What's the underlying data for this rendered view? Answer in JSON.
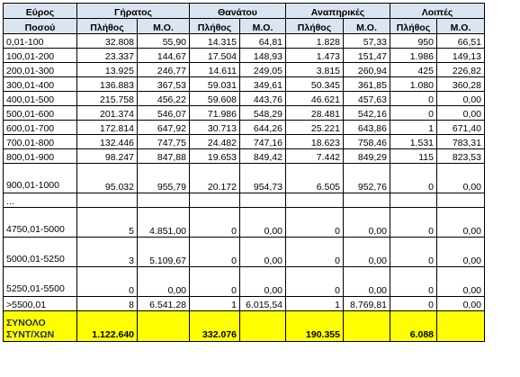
{
  "header": {
    "range_label_1": "Εύρος",
    "range_label_2": "Ποσού",
    "groups": [
      "Γήρατος",
      "Θανάτου",
      "Αναπηρικές",
      "Λοιπές"
    ],
    "count_label": "Πλήθος",
    "avg_label": "Μ.Ο."
  },
  "rows": [
    {
      "range": "0,01-100",
      "cells": [
        "32.808",
        "55,90",
        "14.315",
        "64,81",
        "1.828",
        "57,33",
        "950",
        "66,51"
      ]
    },
    {
      "range": "100,01-200",
      "cells": [
        "23.337",
        "144,67",
        "17.504",
        "148,93",
        "1.473",
        "151,47",
        "1.986",
        "149,13"
      ]
    },
    {
      "range": "200,01-300",
      "cells": [
        "13.925",
        "246,77",
        "14.611",
        "249,05",
        "3.815",
        "260,94",
        "425",
        "226,82"
      ]
    },
    {
      "range": "300,01-400",
      "cells": [
        "136.883",
        "367,53",
        "59.031",
        "349,61",
        "50.345",
        "361,85",
        "1.080",
        "360,28"
      ]
    },
    {
      "range": "400,01-500",
      "cells": [
        "215.758",
        "456,22",
        "59.608",
        "443,76",
        "46.621",
        "457,63",
        "0",
        "0,00"
      ]
    },
    {
      "range": "500,01-600",
      "cells": [
        "201.374",
        "546,07",
        "71.986",
        "548,29",
        "28.481",
        "542,16",
        "0",
        "0,00"
      ]
    },
    {
      "range": "600,01-700",
      "cells": [
        "172.814",
        "647,92",
        "30.713",
        "644,26",
        "25.221",
        "643,86",
        "1",
        "671,40"
      ]
    },
    {
      "range": "700,01-800",
      "cells": [
        "132.446",
        "747,75",
        "24.482",
        "747,16",
        "18.623",
        "758,46",
        "1.531",
        "783,31"
      ]
    },
    {
      "range": "800,01-900",
      "cells": [
        "98.247",
        "847,88",
        "19.653",
        "849,42",
        "7.442",
        "849,29",
        "115",
        "823,53"
      ]
    },
    {
      "range": "900,01-1000",
      "cells": [
        "95.032",
        "955,79",
        "20.172",
        "954,73",
        "6.505",
        "952,76",
        "0",
        "0,00"
      ]
    },
    {
      "range": "...",
      "cells": [
        "",
        "",
        "",
        "",
        "",
        "",
        "",
        ""
      ]
    },
    {
      "range": "4750,01-5000",
      "cells": [
        "5",
        "4.851,00",
        "0",
        "0,00",
        "0",
        "0,00",
        "0",
        "0,00"
      ]
    },
    {
      "range": "5000,01-5250",
      "cells": [
        "3",
        "5.109,67",
        "0",
        "0,00",
        "0",
        "0,00",
        "0",
        "0,00"
      ]
    },
    {
      "range": "5250,01-5500",
      "cells": [
        "0",
        "0,00",
        "0",
        "0,00",
        "0",
        "0,00",
        "0",
        "0,00"
      ]
    },
    {
      "range": ">5500,01",
      "cells": [
        "8",
        "6.541,28",
        "1",
        "6.015,54",
        "1",
        "8.769,81",
        "0",
        "0,00"
      ]
    }
  ],
  "footer": {
    "label_1": "ΣΥΝΟΛΟ",
    "label_2": "ΣΥΝΤ/ΧΩΝ",
    "totals": [
      "1.122.640",
      "",
      "332.076",
      "",
      "190.355",
      "",
      "6.088",
      ""
    ]
  },
  "colors": {
    "header_fill": "#dbe5f1",
    "total_fill": "#ffff00"
  }
}
